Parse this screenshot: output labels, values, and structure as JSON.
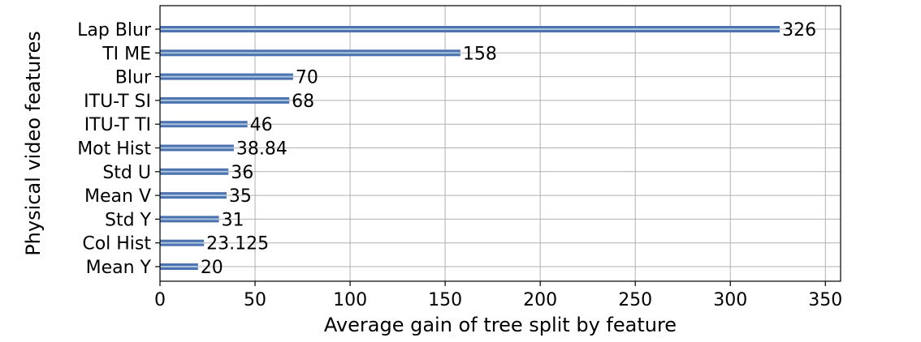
{
  "chart_data": {
    "type": "bar",
    "orientation": "horizontal",
    "categories": [
      "Lap Blur",
      "TI ME",
      "Blur",
      "ITU-T SI",
      "ITU-T TI",
      "Mot Hist",
      "Std U",
      "Mean V",
      "Std Y",
      "Col Hist",
      "Mean Y"
    ],
    "values": [
      326,
      158,
      70,
      68,
      46,
      38.84,
      36,
      35,
      31,
      23.125,
      20
    ],
    "value_labels": [
      "326",
      "158",
      "70",
      "68",
      "46",
      "38.84",
      "36",
      "35",
      "31",
      "23.125",
      "20"
    ],
    "xlabel": "Average gain of tree split by feature",
    "ylabel": "Physical video features",
    "xlim": [
      0,
      358
    ],
    "xticks": [
      0,
      50,
      100,
      150,
      200,
      250,
      300,
      350
    ],
    "grid": true,
    "bar_color": "#4c72b0",
    "bar_highlight": "#a9c4dc"
  }
}
